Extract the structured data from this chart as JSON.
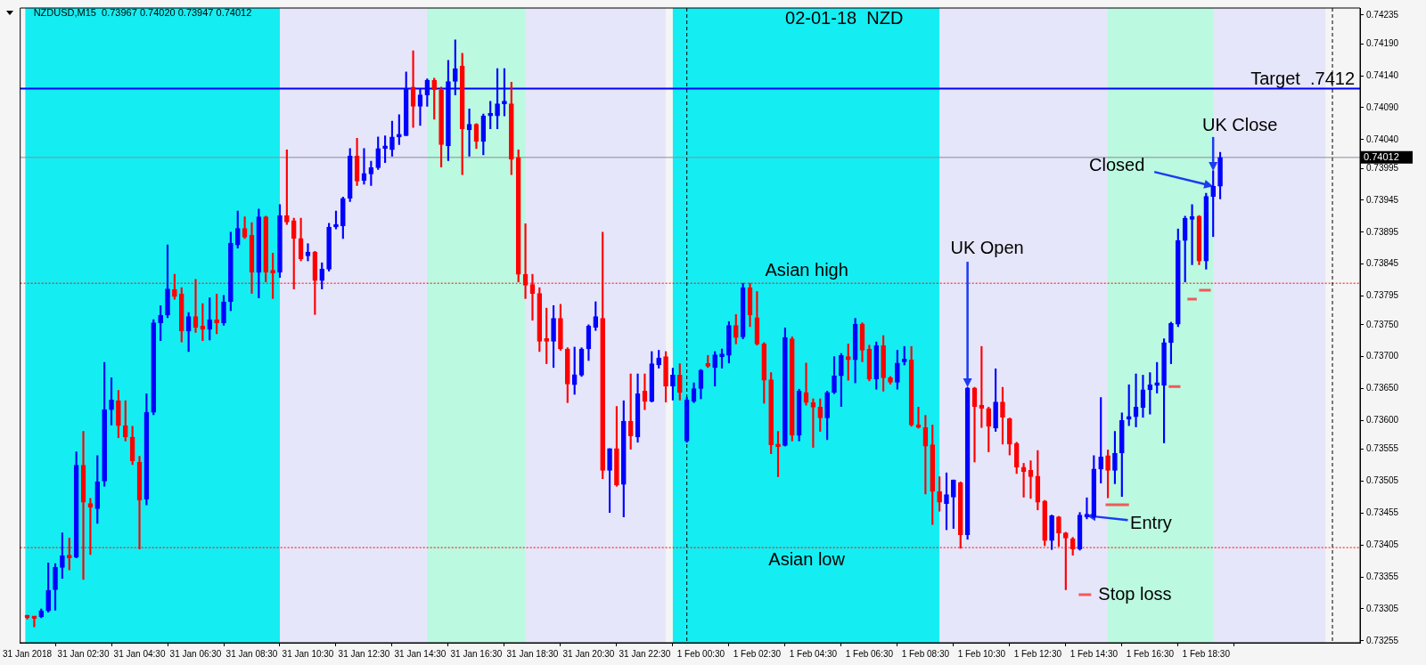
{
  "chart_data": {
    "type": "candlestick",
    "title": "02-01-18  NZD",
    "subtitle": "NZDUSD,M15  0.73967 0.74020 0.73947 0.74012",
    "colors": [
      "#ff0000",
      "#ff0000",
      "#0000ff",
      "#0000ff",
      "#0000ff",
      "#0000ff",
      "#ff0000",
      "#0000ff",
      "#ff0000",
      "#ff0000",
      "#0000ff",
      "#0000ff",
      "#0000ff",
      "#ff0000",
      "#ff0000",
      "#ff0000",
      "#ff0000",
      "#0000ff",
      "#0000ff",
      "#0000ff",
      "#0000ff",
      "#ff0000",
      "#ff0000",
      "#0000ff",
      "#ff0000",
      "#ff0000",
      "#0000ff",
      "#ff0000",
      "#0000ff",
      "#0000ff",
      "#0000ff",
      "#ff0000",
      "#ff0000",
      "#0000ff",
      "#ff0000",
      "#ff0000",
      "#0000ff",
      "#ff0000",
      "#ff0000",
      "#ff0000",
      "#0000ff",
      "#ff0000",
      "#0000ff",
      "#0000ff",
      "#0000ff",
      "#0000ff",
      "#0000ff",
      "#ff0000",
      "#0000ff",
      "#0000ff",
      "#0000ff",
      "#0000ff",
      "#0000ff",
      "#0000ff",
      "#0000ff",
      "#ff0000",
      "#0000ff",
      "#0000ff",
      "#ff0000",
      "#ff0000",
      "#0000ff",
      "#0000ff",
      "#ff0000",
      "#0000ff",
      "#ff0000",
      "#0000ff",
      "#0000ff",
      "#0000ff",
      "#0000ff",
      "#ff0000",
      "#ff0000",
      "#ff0000",
      "#ff0000",
      "#ff0000",
      "#ff0000",
      "#0000ff",
      "#ff0000",
      "#ff0000",
      "#0000ff",
      "#0000ff",
      "#0000ff",
      "#0000ff",
      "#ff0000",
      "#0000ff",
      "#ff0000",
      "#0000ff",
      "#ff0000",
      "#0000ff",
      "#ff0000",
      "#0000ff",
      "#0000ff",
      "#ff0000",
      "#0000ff",
      "#ff0000",
      "#0000ff",
      "#0000ff",
      "#0000ff",
      "#ff0000",
      "#0000ff",
      "#0000ff",
      "#0000ff",
      "#ff0000",
      "#0000ff",
      "#ff0000",
      "#ff0000",
      "#ff0000",
      "#ff0000",
      "#ff0000",
      "#0000ff",
      "#ff0000",
      "#0000ff",
      "#ff0000",
      "#ff0000",
      "#ff0000",
      "#0000ff",
      "#0000ff",
      "#0000ff",
      "#ff0000",
      "#0000ff",
      "#ff0000",
      "#ff0000",
      "#0000ff",
      "#ff0000",
      "#ff0000",
      "#0000ff",
      "#0000ff",
      "#ff0000",
      "#ff0000",
      "#ff0000",
      "#ff0000",
      "#ff0000",
      "#0000ff",
      "#0000ff",
      "#ff0000",
      "#0000ff",
      "#ff0000",
      "#ff0000",
      "#ff0000",
      "#0000ff",
      "#ff0000",
      "#ff0000",
      "#ff0000",
      "#ff0000",
      "#ff0000",
      "#ff0000",
      "#ff0000",
      "#0000ff",
      "#ff0000",
      "#ff0000",
      "#ff0000",
      "#0000ff",
      "#0000ff",
      "#0000ff",
      "#0000ff",
      "#ff0000",
      "#0000ff",
      "#0000ff",
      "#0000ff",
      "#0000ff",
      "#0000ff",
      "#0000ff",
      "#0000ff",
      "#0000ff",
      "#0000ff",
      "#0000ff",
      "#0000ff",
      "#0000ff",
      "#ff0000",
      "#0000ff",
      "#0000ff",
      "#0000ff"
    ],
    "marker": "none",
    "grid": false,
    "legend": "bottom",
    "x": [
      "2018-01-31T00:30",
      "2018-01-31T00:45",
      "2018-01-31T01:00",
      "2018-01-31T01:15",
      "2018-01-31T01:30",
      "2018-01-31T01:45",
      "2018-01-31T02:00",
      "2018-01-31T02:15",
      "2018-01-31T02:30",
      "2018-01-31T02:45",
      "2018-01-31T03:00",
      "2018-01-31T03:15",
      "2018-01-31T03:30",
      "2018-01-31T03:45",
      "2018-01-31T04:00",
      "2018-01-31T04:15",
      "2018-01-31T04:30",
      "2018-01-31T04:45",
      "2018-01-31T05:00",
      "2018-01-31T05:15",
      "2018-01-31T05:30",
      "2018-01-31T05:45",
      "2018-01-31T06:00",
      "2018-01-31T06:15",
      "2018-01-31T06:30",
      "2018-01-31T06:45",
      "2018-01-31T07:00",
      "2018-01-31T07:15",
      "2018-01-31T07:30",
      "2018-01-31T07:45",
      "2018-01-31T08:00",
      "2018-01-31T08:15",
      "2018-01-31T08:30",
      "2018-01-31T08:45",
      "2018-01-31T09:00",
      "2018-01-31T09:15",
      "2018-01-31T09:30",
      "2018-01-31T09:45",
      "2018-01-31T10:00",
      "2018-01-31T10:15",
      "2018-01-31T10:30",
      "2018-01-31T10:45",
      "2018-01-31T11:00",
      "2018-01-31T11:15",
      "2018-01-31T11:30",
      "2018-01-31T11:45",
      "2018-01-31T12:00",
      "2018-01-31T12:15",
      "2018-01-31T12:30",
      "2018-01-31T12:45",
      "2018-01-31T13:00",
      "2018-01-31T13:15",
      "2018-01-31T13:30",
      "2018-01-31T13:45",
      "2018-01-31T14:00",
      "2018-01-31T14:15",
      "2018-01-31T14:30",
      "2018-01-31T14:45",
      "2018-01-31T15:00",
      "2018-01-31T15:15",
      "2018-01-31T15:30",
      "2018-01-31T15:45",
      "2018-01-31T16:00",
      "2018-01-31T16:15",
      "2018-01-31T16:30",
      "2018-01-31T16:45",
      "2018-01-31T17:00",
      "2018-01-31T17:15",
      "2018-01-31T17:30",
      "2018-01-31T17:45",
      "2018-01-31T18:00",
      "2018-01-31T18:15",
      "2018-01-31T18:30",
      "2018-01-31T18:45",
      "2018-01-31T19:00",
      "2018-01-31T19:15",
      "2018-01-31T19:30",
      "2018-01-31T19:45",
      "2018-01-31T20:00",
      "2018-01-31T20:15",
      "2018-01-31T20:30",
      "2018-01-31T20:45",
      "2018-01-31T21:00",
      "2018-01-31T21:15",
      "2018-01-31T21:30",
      "2018-01-31T21:45",
      "2018-01-31T22:00",
      "2018-01-31T22:15",
      "2018-01-31T22:30",
      "2018-01-31T22:45",
      "2018-01-31T23:00",
      "2018-01-31T23:15",
      "2018-01-31T23:30",
      "2018-01-31T23:45",
      "2018-02-01T00:00",
      "2018-02-01T00:15",
      "2018-02-01T00:30",
      "2018-02-01T00:45",
      "2018-02-01T01:00",
      "2018-02-01T01:15",
      "2018-02-01T01:30",
      "2018-02-01T01:45",
      "2018-02-01T02:00",
      "2018-02-01T02:15",
      "2018-02-01T02:30",
      "2018-02-01T02:45",
      "2018-02-01T03:00",
      "2018-02-01T03:15",
      "2018-02-01T03:30",
      "2018-02-01T03:45",
      "2018-02-01T04:00",
      "2018-02-01T04:15",
      "2018-02-01T04:30",
      "2018-02-01T04:45",
      "2018-02-01T05:00",
      "2018-02-01T05:15",
      "2018-02-01T05:30",
      "2018-02-01T05:45",
      "2018-02-01T06:00",
      "2018-02-01T06:15",
      "2018-02-01T06:30",
      "2018-02-01T06:45",
      "2018-02-01T07:00",
      "2018-02-01T07:15",
      "2018-02-01T07:30",
      "2018-02-01T07:45",
      "2018-02-01T08:00",
      "2018-02-01T08:15",
      "2018-02-01T08:30",
      "2018-02-01T08:45",
      "2018-02-01T09:00",
      "2018-02-01T09:15",
      "2018-02-01T09:30",
      "2018-02-01T09:45",
      "2018-02-01T10:00",
      "2018-02-01T10:15",
      "2018-02-01T10:30",
      "2018-02-01T10:45",
      "2018-02-01T11:00",
      "2018-02-01T11:15",
      "2018-02-01T11:30",
      "2018-02-01T11:45",
      "2018-02-01T12:00",
      "2018-02-01T12:15",
      "2018-02-01T12:30",
      "2018-02-01T12:45",
      "2018-02-01T13:00",
      "2018-02-01T13:15",
      "2018-02-01T13:30",
      "2018-02-01T13:45",
      "2018-02-01T14:00",
      "2018-02-01T14:15",
      "2018-02-01T14:30",
      "2018-02-01T14:45",
      "2018-02-01T15:00",
      "2018-02-01T15:15",
      "2018-02-01T15:30",
      "2018-02-01T15:45",
      "2018-02-01T16:00",
      "2018-02-01T16:15",
      "2018-02-01T16:30",
      "2018-02-01T16:45",
      "2018-02-01T17:00",
      "2018-02-01T17:15",
      "2018-02-01T17:30",
      "2018-02-01T17:45",
      "2018-02-01T18:00",
      "2018-02-01T18:15",
      "2018-02-01T18:30",
      "2018-02-01T18:45",
      "2018-02-01T19:00"
    ],
    "ohlc": [
      [
        0.73293,
        0.73295,
        0.73289,
        0.73291
      ],
      [
        0.73291,
        0.73293,
        0.73277,
        0.7329
      ],
      [
        0.73293,
        0.73305,
        0.73291,
        0.73302
      ],
      [
        0.73302,
        0.73377,
        0.733,
        0.73334
      ],
      [
        0.73335,
        0.73376,
        0.73303,
        0.7337
      ],
      [
        0.7337,
        0.73424,
        0.73353,
        0.73388
      ],
      [
        0.73388,
        0.73416,
        0.73366,
        0.73385
      ],
      [
        0.73386,
        0.73551,
        0.73385,
        0.7353
      ],
      [
        0.7353,
        0.73583,
        0.73351,
        0.73472
      ],
      [
        0.7347,
        0.73478,
        0.7339,
        0.73464
      ],
      [
        0.73462,
        0.73545,
        0.73439,
        0.73504
      ],
      [
        0.73505,
        0.73691,
        0.73497,
        0.73617
      ],
      [
        0.73617,
        0.73667,
        0.73593,
        0.73632
      ],
      [
        0.73631,
        0.73647,
        0.73573,
        0.73592
      ],
      [
        0.73592,
        0.73631,
        0.73568,
        0.73574
      ],
      [
        0.73574,
        0.73591,
        0.73531,
        0.73537
      ],
      [
        0.73535,
        0.73544,
        0.73399,
        0.73475
      ],
      [
        0.73477,
        0.73642,
        0.73468,
        0.73613
      ],
      [
        0.73613,
        0.73758,
        0.73609,
        0.73753
      ],
      [
        0.73753,
        0.7378,
        0.73725,
        0.73765
      ],
      [
        0.73765,
        0.73875,
        0.73761,
        0.73806
      ],
      [
        0.73805,
        0.73829,
        0.7379,
        0.73794
      ],
      [
        0.73798,
        0.73808,
        0.73723,
        0.7374
      ],
      [
        0.7374,
        0.73769,
        0.73708,
        0.73763
      ],
      [
        0.73763,
        0.73821,
        0.73738,
        0.73746
      ],
      [
        0.73748,
        0.73783,
        0.73725,
        0.73743
      ],
      [
        0.73743,
        0.73792,
        0.73726,
        0.73758
      ],
      [
        0.73758,
        0.73798,
        0.73736,
        0.73753
      ],
      [
        0.73753,
        0.73796,
        0.73749,
        0.73786
      ],
      [
        0.73786,
        0.73895,
        0.73772,
        0.73878
      ],
      [
        0.73875,
        0.73928,
        0.7387,
        0.73901
      ],
      [
        0.73901,
        0.73919,
        0.73885,
        0.73887
      ],
      [
        0.7389,
        0.7391,
        0.73799,
        0.73832
      ],
      [
        0.73832,
        0.73931,
        0.73792,
        0.73919
      ],
      [
        0.73919,
        0.7392,
        0.73817,
        0.73832
      ],
      [
        0.73832,
        0.73862,
        0.73791,
        0.73831
      ],
      [
        0.73832,
        0.73938,
        0.73824,
        0.73921
      ],
      [
        0.73921,
        0.74024,
        0.73907,
        0.73911
      ],
      [
        0.73913,
        0.73917,
        0.73806,
        0.73885
      ],
      [
        0.73885,
        0.73917,
        0.7385,
        0.73853
      ],
      [
        0.73858,
        0.73877,
        0.7385,
        0.73864
      ],
      [
        0.73864,
        0.73865,
        0.73766,
        0.73819
      ],
      [
        0.73819,
        0.73847,
        0.73806,
        0.73837
      ],
      [
        0.73837,
        0.73909,
        0.73834,
        0.73903
      ],
      [
        0.73903,
        0.73928,
        0.739,
        0.73906
      ],
      [
        0.73905,
        0.7395,
        0.73885,
        0.73948
      ],
      [
        0.73948,
        0.74026,
        0.73943,
        0.74014
      ],
      [
        0.74014,
        0.74042,
        0.73968,
        0.73975
      ],
      [
        0.73976,
        0.74026,
        0.7397,
        0.73987
      ],
      [
        0.73986,
        0.74006,
        0.73968,
        0.73996
      ],
      [
        0.73996,
        0.74044,
        0.73993,
        0.74026
      ],
      [
        0.74026,
        0.74046,
        0.74004,
        0.74027
      ],
      [
        0.74024,
        0.74069,
        0.74014,
        0.74044
      ],
      [
        0.74044,
        0.74079,
        0.74032,
        0.74047
      ],
      [
        0.74046,
        0.74146,
        0.74046,
        0.7412
      ],
      [
        0.74122,
        0.74179,
        0.74059,
        0.74092
      ],
      [
        0.74092,
        0.7412,
        0.74062,
        0.7411
      ],
      [
        0.7411,
        0.74135,
        0.74092,
        0.74133
      ],
      [
        0.74133,
        0.74136,
        0.74072,
        0.74118
      ],
      [
        0.74118,
        0.74122,
        0.73997,
        0.74032
      ],
      [
        0.7403,
        0.74164,
        0.74007,
        0.74131
      ],
      [
        0.74131,
        0.74196,
        0.7411,
        0.74151
      ],
      [
        0.74155,
        0.74175,
        0.73985,
        0.74057
      ],
      [
        0.74055,
        0.74088,
        0.74014,
        0.74064
      ],
      [
        0.74064,
        0.74065,
        0.74026,
        0.74037
      ],
      [
        0.74037,
        0.7408,
        0.74016,
        0.74077
      ],
      [
        0.74077,
        0.741,
        0.74057,
        0.74078
      ],
      [
        0.74077,
        0.74151,
        0.74057,
        0.74096
      ],
      [
        0.74096,
        0.74151,
        0.74077,
        0.74097
      ],
      [
        0.74096,
        0.7413,
        0.73985,
        0.74009
      ],
      [
        0.74012,
        0.74024,
        0.73817,
        0.73829
      ],
      [
        0.73829,
        0.73908,
        0.73791,
        0.73812
      ],
      [
        0.73813,
        0.73829,
        0.73757,
        0.73799
      ],
      [
        0.73799,
        0.73808,
        0.73708,
        0.73724
      ],
      [
        0.73725,
        0.73776,
        0.73689,
        0.73724
      ],
      [
        0.73724,
        0.7378,
        0.73683,
        0.7376
      ],
      [
        0.7376,
        0.73782,
        0.7371,
        0.73712
      ],
      [
        0.73712,
        0.73714,
        0.73628,
        0.73657
      ],
      [
        0.73656,
        0.73715,
        0.73641,
        0.73672
      ],
      [
        0.73671,
        0.73714,
        0.73669,
        0.73712
      ],
      [
        0.73712,
        0.7375,
        0.73694,
        0.73748
      ],
      [
        0.73746,
        0.73786,
        0.73741,
        0.73763
      ],
      [
        0.7376,
        0.73895,
        0.73509,
        0.73522
      ],
      [
        0.73522,
        0.73556,
        0.73456,
        0.73556
      ],
      [
        0.73556,
        0.73622,
        0.73497,
        0.73499
      ],
      [
        0.735,
        0.73631,
        0.73449,
        0.73599
      ],
      [
        0.73599,
        0.73673,
        0.73555,
        0.73576
      ],
      [
        0.73574,
        0.73673,
        0.73566,
        0.73642
      ],
      [
        0.73646,
        0.73673,
        0.73617,
        0.7363
      ],
      [
        0.7363,
        0.73708,
        0.73629,
        0.73689
      ],
      [
        0.73687,
        0.7371,
        0.73682,
        0.73698
      ],
      [
        0.737,
        0.73708,
        0.73629,
        0.73654
      ],
      [
        0.73654,
        0.73682,
        0.73632,
        0.73671
      ],
      [
        0.73671,
        0.73689,
        0.73632,
        0.73644
      ],
      [
        0.73568,
        0.73636,
        0.73566,
        0.73632
      ],
      [
        0.7363,
        0.73659,
        0.73628,
        0.7365
      ],
      [
        0.7365,
        0.7368,
        0.73634,
        0.73679
      ],
      [
        0.73689,
        0.73702,
        0.73683,
        0.73685
      ],
      [
        0.73683,
        0.73708,
        0.73654,
        0.73703
      ],
      [
        0.737,
        0.73712,
        0.73682,
        0.73704
      ],
      [
        0.73702,
        0.73755,
        0.7369,
        0.73749
      ],
      [
        0.73749,
        0.73766,
        0.7372,
        0.7373
      ],
      [
        0.73731,
        0.73815,
        0.73728,
        0.73808
      ],
      [
        0.73808,
        0.73815,
        0.73747,
        0.73765
      ],
      [
        0.73761,
        0.73802,
        0.73718,
        0.7372
      ],
      [
        0.7372,
        0.73722,
        0.73627,
        0.73663
      ],
      [
        0.73664,
        0.73675,
        0.73548,
        0.73562
      ],
      [
        0.73561,
        0.73583,
        0.73512,
        0.73559
      ],
      [
        0.73561,
        0.73745,
        0.7356,
        0.7373
      ],
      [
        0.73728,
        0.73731,
        0.73568,
        0.73577
      ],
      [
        0.73577,
        0.73649,
        0.73568,
        0.73646
      ],
      [
        0.73644,
        0.7369,
        0.73624,
        0.73628
      ],
      [
        0.73628,
        0.73634,
        0.73558,
        0.73621
      ],
      [
        0.73621,
        0.73634,
        0.73583,
        0.73604
      ],
      [
        0.73604,
        0.73646,
        0.7357,
        0.73644
      ],
      [
        0.73644,
        0.737,
        0.73642,
        0.7367
      ],
      [
        0.7367,
        0.73705,
        0.73622,
        0.73702
      ],
      [
        0.737,
        0.7372,
        0.73663,
        0.73695
      ],
      [
        0.73695,
        0.7376,
        0.73659,
        0.73751
      ],
      [
        0.73751,
        0.73753,
        0.73692,
        0.7371
      ],
      [
        0.73712,
        0.73718,
        0.73662,
        0.73665
      ],
      [
        0.73665,
        0.73723,
        0.73649,
        0.73717
      ],
      [
        0.73717,
        0.73733,
        0.73646,
        0.73667
      ],
      [
        0.73667,
        0.73669,
        0.73657,
        0.7366
      ],
      [
        0.7366,
        0.7371,
        0.73649,
        0.7369
      ],
      [
        0.73692,
        0.73716,
        0.73687,
        0.73693
      ],
      [
        0.73695,
        0.73716,
        0.73591,
        0.73593
      ],
      [
        0.73593,
        0.73621,
        0.73588,
        0.73589
      ],
      [
        0.73589,
        0.73608,
        0.73485,
        0.7356
      ],
      [
        0.73562,
        0.73593,
        0.73437,
        0.73489
      ],
      [
        0.73489,
        0.73512,
        0.73458,
        0.73472
      ],
      [
        0.7347,
        0.73518,
        0.73429,
        0.73484
      ],
      [
        0.7348,
        0.73507,
        0.73431,
        0.73507
      ],
      [
        0.73503,
        0.73504,
        0.734,
        0.73421
      ],
      [
        0.73421,
        0.73652,
        0.73414,
        0.73651
      ],
      [
        0.73651,
        0.73652,
        0.73535,
        0.73622
      ],
      [
        0.73624,
        0.73716,
        0.73589,
        0.73619
      ],
      [
        0.73619,
        0.73621,
        0.73551,
        0.73591
      ],
      [
        0.73588,
        0.73681,
        0.73583,
        0.73629
      ],
      [
        0.73629,
        0.73652,
        0.73563,
        0.73605
      ],
      [
        0.73603,
        0.73604,
        0.73546,
        0.73563
      ],
      [
        0.73564,
        0.73566,
        0.73517,
        0.73527
      ],
      [
        0.73527,
        0.73533,
        0.7348,
        0.7352
      ],
      [
        0.73522,
        0.73537,
        0.73478,
        0.73512
      ],
      [
        0.73513,
        0.73553,
        0.7346,
        0.73472
      ],
      [
        0.73474,
        0.73475,
        0.73404,
        0.73412
      ],
      [
        0.73412,
        0.73452,
        0.73398,
        0.73451
      ],
      [
        0.73449,
        0.7345,
        0.73403,
        0.73424
      ],
      [
        0.73424,
        0.73425,
        0.73335,
        0.73416
      ],
      [
        0.73415,
        0.73417,
        0.73389,
        0.73399
      ],
      [
        0.73399,
        0.73456,
        0.73397,
        0.73452
      ],
      [
        0.73449,
        0.73479,
        0.73446,
        0.73451
      ],
      [
        0.73449,
        0.73545,
        0.73448,
        0.73524
      ],
      [
        0.73524,
        0.73636,
        0.73502,
        0.73543
      ],
      [
        0.73545,
        0.73554,
        0.73479,
        0.73522
      ],
      [
        0.73522,
        0.73583,
        0.73501,
        0.73549
      ],
      [
        0.73549,
        0.73612,
        0.73481,
        0.736
      ],
      [
        0.73602,
        0.73656,
        0.73592,
        0.73606
      ],
      [
        0.73606,
        0.73673,
        0.7359,
        0.73621
      ],
      [
        0.7362,
        0.73671,
        0.73605,
        0.73648
      ],
      [
        0.73648,
        0.73675,
        0.7361,
        0.73656
      ],
      [
        0.73655,
        0.73691,
        0.73643,
        0.73657
      ],
      [
        0.73655,
        0.73728,
        0.73565,
        0.73722
      ],
      [
        0.73722,
        0.73754,
        0.73689,
        0.73752
      ],
      [
        0.73751,
        0.739,
        0.73747,
        0.73882
      ],
      [
        0.73882,
        0.7392,
        0.73817,
        0.73917
      ],
      [
        0.73915,
        0.73938,
        0.73844,
        0.73919
      ],
      [
        0.7392,
        0.73921,
        0.73844,
        0.7385
      ],
      [
        0.7385,
        0.73956,
        0.73837,
        0.73951
      ],
      [
        0.73951,
        0.73991,
        0.73888,
        0.73967
      ],
      [
        0.73967,
        0.7402,
        0.73947,
        0.74012
      ]
    ],
    "series": [
      {
        "type": "line",
        "name": "Stop loss",
        "color": "#f05a5a",
        "x": [
          "2018-02-01T14:55",
          "2018-02-01T15:45",
          "2018-02-01T16:30",
          "2018-02-01T17:10",
          "2018-02-01T17:35",
          "2018-02-01T17:42",
          "2018-02-01T17:50",
          "2018-02-01T18:10",
          "2018-02-01T18:12",
          "2018-02-01T18:15",
          "2018-02-01T18:40"
        ],
        "values": [
          0.73468,
          0.73468,
          null,
          0.73653,
          0.73653,
          null,
          0.7379,
          0.7379,
          null,
          0.73804,
          0.73804
        ]
      }
    ],
    "xlim": [
      "2018-01-31T00:15",
      "2018-02-01T23:59"
    ],
    "xticks": [
      {
        "value": "2018-01-31T00:30",
        "label": "31 Jan 2018"
      },
      {
        "value": "2018-01-31T02:30",
        "label": "31 Jan 02:30"
      },
      {
        "value": "2018-01-31T04:30",
        "label": "31 Jan 04:30"
      },
      {
        "value": "2018-01-31T06:30",
        "label": "31 Jan 06:30"
      },
      {
        "value": "2018-01-31T08:30",
        "label": "31 Jan 08:30"
      },
      {
        "value": "2018-01-31T10:30",
        "label": "31 Jan 10:30"
      },
      {
        "value": "2018-01-31T12:30",
        "label": "31 Jan 12:30"
      },
      {
        "value": "2018-01-31T14:30",
        "label": "31 Jan 14:30"
      },
      {
        "value": "2018-01-31T16:30",
        "label": "31 Jan 16:30"
      },
      {
        "value": "2018-01-31T18:30",
        "label": "31 Jan 18:30"
      },
      {
        "value": "2018-01-31T20:30",
        "label": "31 Jan 20:30"
      },
      {
        "value": "2018-01-31T22:30",
        "label": "31 Jan 22:30"
      },
      {
        "value": "2018-02-01T00:30",
        "label": "1 Feb 00:30"
      },
      {
        "value": "2018-02-01T02:30",
        "label": "1 Feb 02:30"
      },
      {
        "value": "2018-02-01T04:30",
        "label": "1 Feb 04:30"
      },
      {
        "value": "2018-02-01T06:30",
        "label": "1 Feb 06:30"
      },
      {
        "value": "2018-02-01T08:30",
        "label": "1 Feb 08:30"
      },
      {
        "value": "2018-02-01T10:30",
        "label": "1 Feb 10:30"
      },
      {
        "value": "2018-02-01T12:30",
        "label": "1 Feb 12:30"
      },
      {
        "value": "2018-02-01T14:30",
        "label": "1 Feb 14:30"
      },
      {
        "value": "2018-02-01T16:30",
        "label": "1 Feb 16:30"
      },
      {
        "value": "2018-02-01T18:30",
        "label": "1 Feb 18:30"
      }
    ],
    "ylim": [
      0.73252,
      0.74246
    ],
    "yticks": [
      {
        "value": 0.74235,
        "label": "0.74235"
      },
      {
        "value": 0.7419,
        "label": "0.74190"
      },
      {
        "value": 0.7414,
        "label": "0.74140"
      },
      {
        "value": 0.7409,
        "label": "0.74090"
      },
      {
        "value": 0.7404,
        "label": "0.74040"
      },
      {
        "value": 0.73995,
        "label": "0.73995"
      },
      {
        "value": 0.73945,
        "label": "0.73945"
      },
      {
        "value": 0.73895,
        "label": "0.73895"
      },
      {
        "value": 0.73845,
        "label": "0.73845"
      },
      {
        "value": 0.73795,
        "label": "0.73795"
      },
      {
        "value": 0.7375,
        "label": "0.73750"
      },
      {
        "value": 0.737,
        "label": "0.73700"
      },
      {
        "value": 0.7365,
        "label": "0.73650"
      },
      {
        "value": 0.736,
        "label": "0.73600"
      },
      {
        "value": 0.73555,
        "label": "0.73555"
      },
      {
        "value": 0.73505,
        "label": "0.73505"
      },
      {
        "value": 0.73455,
        "label": "0.73455"
      },
      {
        "value": 0.73405,
        "label": "0.73405"
      },
      {
        "value": 0.73355,
        "label": "0.73355"
      },
      {
        "value": 0.73305,
        "label": "0.73305"
      },
      {
        "value": 0.73255,
        "label": "0.73255"
      }
    ],
    "bands": [
      {
        "axis": "x",
        "from": "2018-01-31T00:26",
        "to": "2018-01-31T23:15",
        "color": "#e6e6fa"
      },
      {
        "axis": "x",
        "from": "2018-01-31T23:30",
        "to": "2018-02-01T22:45",
        "color": "#e6e6fa"
      },
      {
        "axis": "x",
        "from": "2018-01-31T00:26",
        "to": "2018-01-31T09:30",
        "color": "#14eef2"
      },
      {
        "axis": "x",
        "from": "2018-01-31T14:45",
        "to": "2018-01-31T18:15",
        "color": "#bbf9e0"
      },
      {
        "axis": "x",
        "from": "2018-01-31T23:30",
        "to": "2018-02-01T09:00",
        "color": "#14eef2"
      },
      {
        "axis": "x",
        "from": "2018-02-01T15:00",
        "to": "2018-02-01T18:45",
        "color": "#bbf9e0"
      }
    ],
    "ref_lines": [
      {
        "axis": "y",
        "value": 0.7412,
        "label": "Target  .7412",
        "color": "#0000ff",
        "line_style": "solid"
      },
      {
        "axis": "y",
        "value": 0.74012,
        "label": "0.74012",
        "color": "#8c8c96"
      },
      {
        "axis": "y",
        "value": 0.73815,
        "label": "Asian high",
        "color": "#ff0000",
        "line_style": "dotted"
      },
      {
        "axis": "y",
        "value": 0.73401,
        "label": "Asian low",
        "color": "#ff0000",
        "line_style": "dotted"
      },
      {
        "axis": "x",
        "value": "2018-02-01T00:00",
        "color": "#000000",
        "line_style": "dashed"
      },
      {
        "axis": "x",
        "value": "2018-02-01T23:00",
        "color": "#000000",
        "line_style": "dashed"
      }
    ],
    "annotations": [
      {
        "text": "UK Open",
        "x": "2018-02-01T10:00",
        "y": 0.73652
      },
      {
        "text": "UK Close",
        "x": "2018-02-01T18:45",
        "y": 0.73991
      },
      {
        "text": "Closed",
        "x": "2018-02-01T18:45",
        "y": 0.73967
      },
      {
        "text": "Entry",
        "x": "2018-02-01T14:15",
        "y": 0.73451
      }
    ]
  }
}
